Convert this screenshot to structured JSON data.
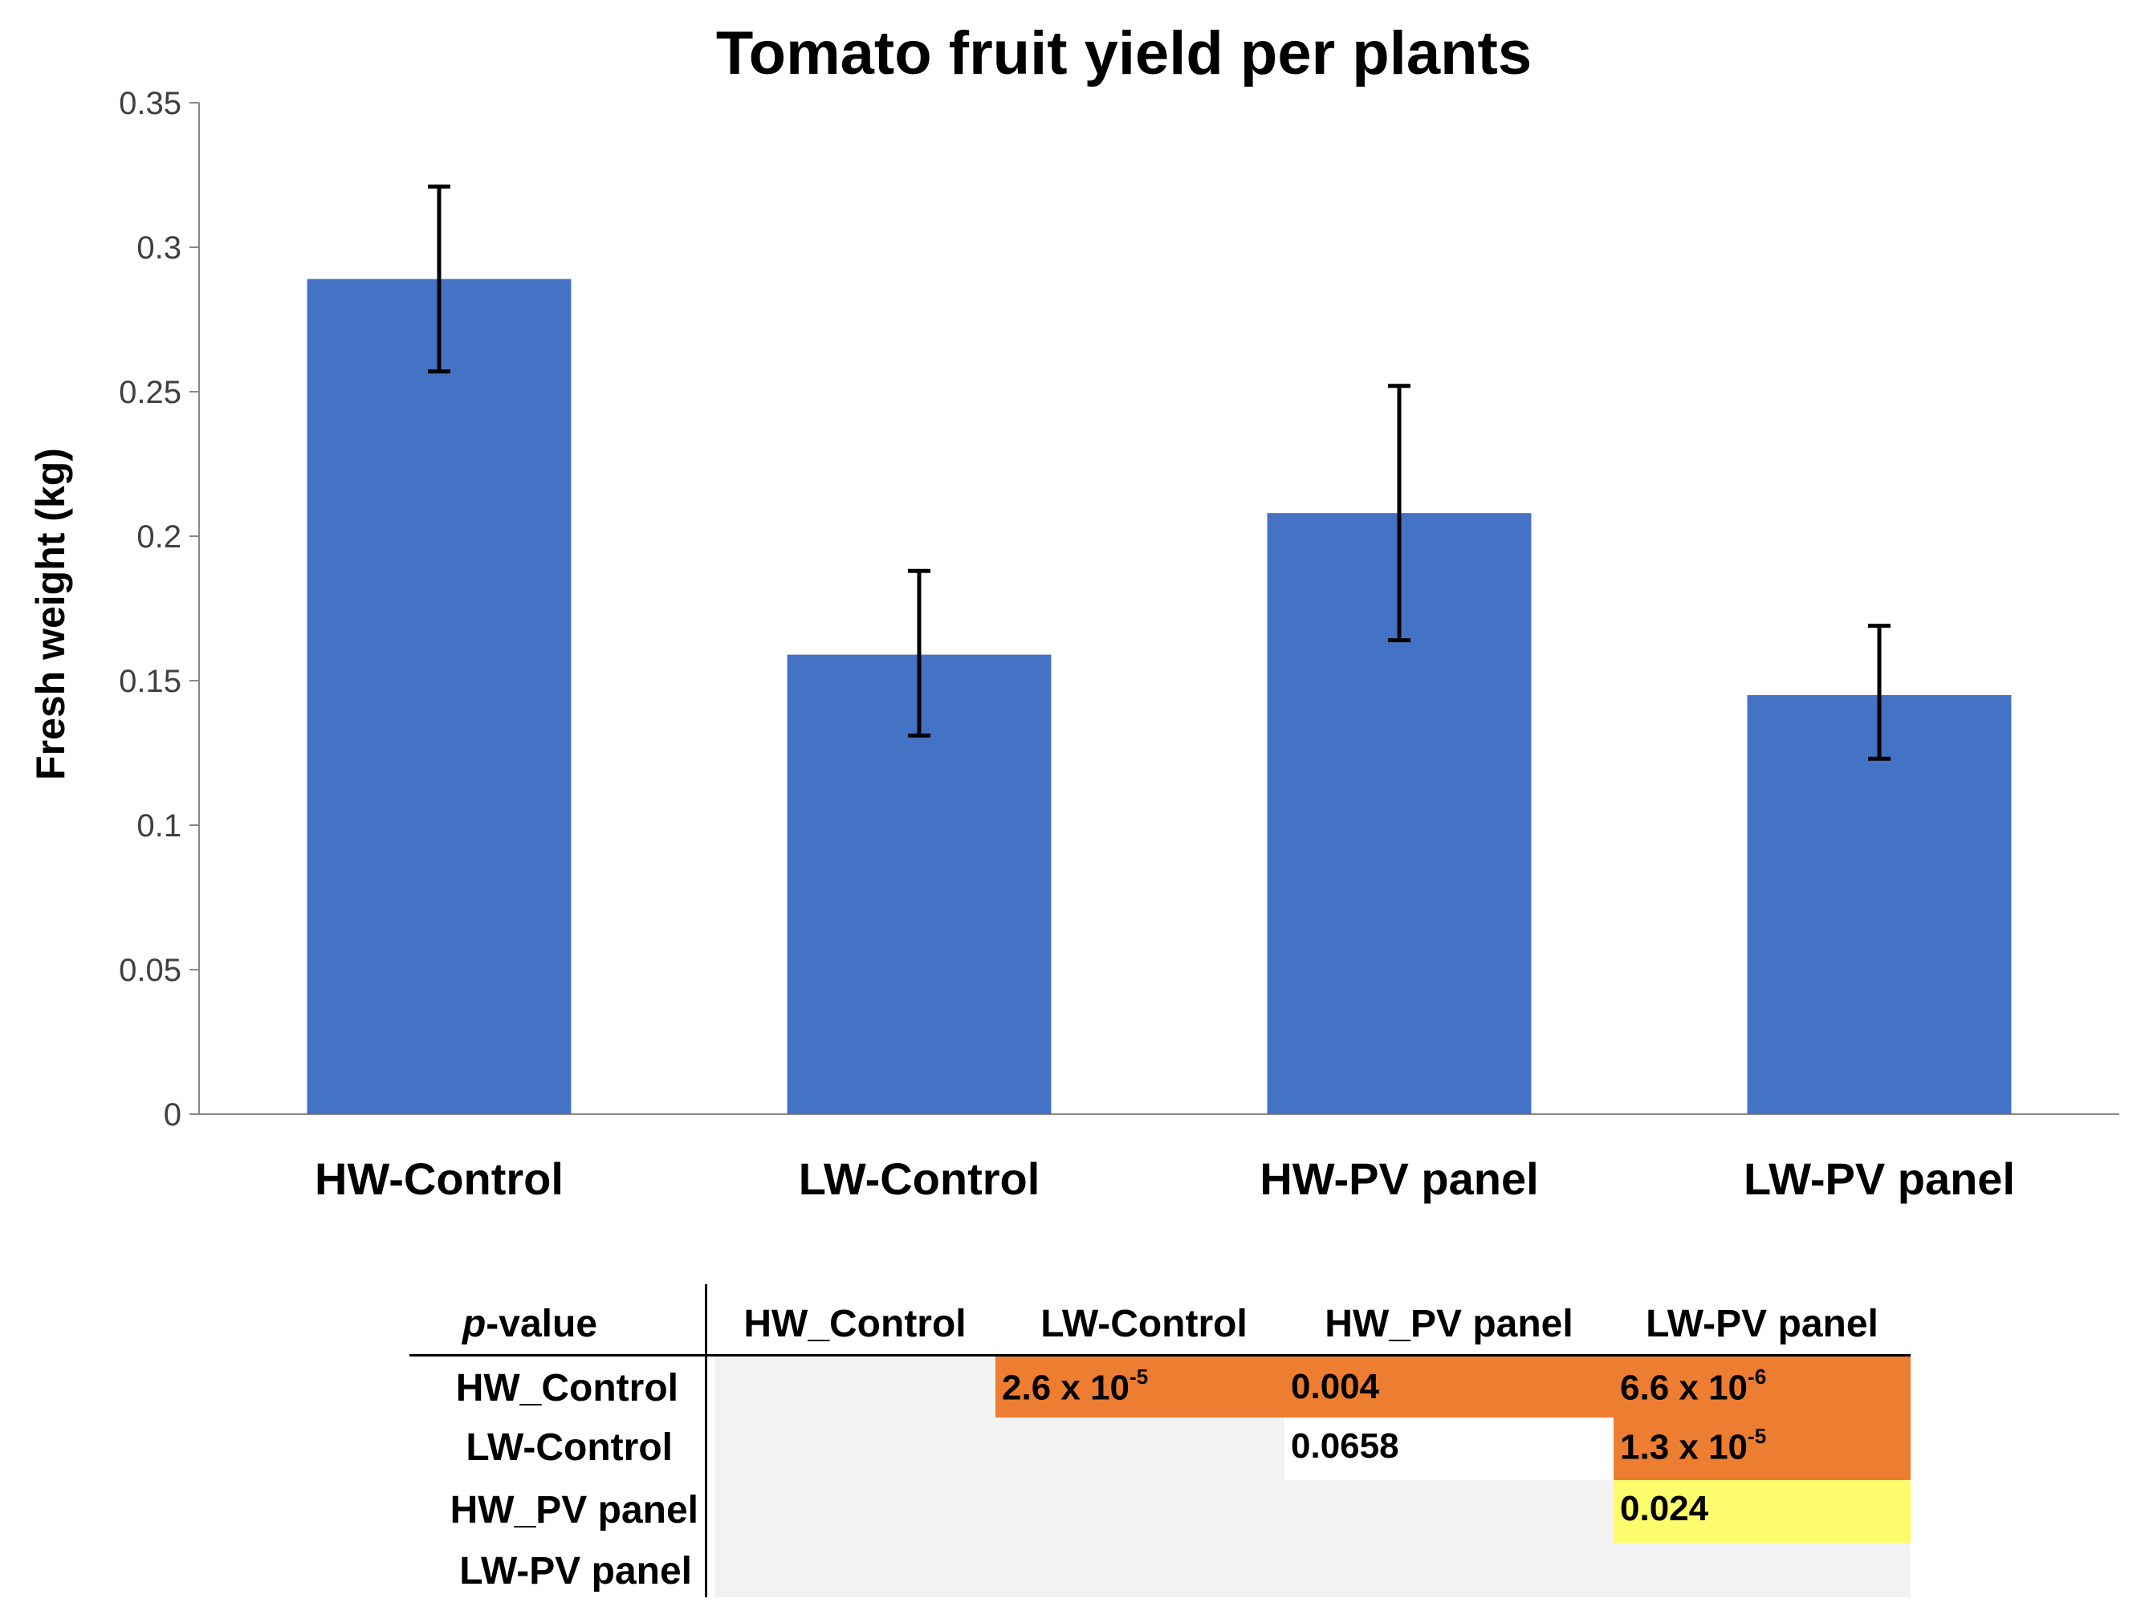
{
  "chart_data": {
    "type": "bar",
    "title": "Tomato fruit yield per plants",
    "xlabel": "",
    "ylabel": "Fresh weight (kg)",
    "ylim": [
      0,
      0.35
    ],
    "yticks": [
      "0",
      "0.05",
      "0.1",
      "0.15",
      "0.2",
      "0.25",
      "0.3",
      "0.35"
    ],
    "ytick_values": [
      0,
      0.05,
      0.1,
      0.15,
      0.2,
      0.25,
      0.3,
      0.35
    ],
    "categories": [
      "HW-Control",
      "LW-Control",
      "HW-PV panel",
      "LW-PV panel"
    ],
    "values": [
      0.289,
      0.159,
      0.208,
      0.145
    ],
    "error_low": [
      0.257,
      0.131,
      0.164,
      0.123
    ],
    "error_high": [
      0.321,
      0.188,
      0.252,
      0.169
    ],
    "bar_color": "#4472c4",
    "grid": false
  },
  "pvalue_table": {
    "corner_italic": "p",
    "corner_rest": "-value",
    "columns": [
      "HW_Control",
      "LW-Control",
      "HW_PV panel",
      "LW-PV panel"
    ],
    "rows": [
      "HW_Control",
      "LW-Control",
      "HW_PV panel",
      "LW-PV panel"
    ],
    "cells": {
      "r1c2_base": "2.6 x 10",
      "r1c2_exp": "-5",
      "r1c3": "0.004",
      "r1c4_base": "6.6 x 10",
      "r1c4_exp": "-6",
      "r2c3": "0.0658",
      "r2c4_base": "1.3 x 10",
      "r2c4_exp": "-5",
      "r3c4": "0.024"
    },
    "colors": {
      "significant": "#ed7d31",
      "marginal": "#fcfc6c",
      "empty": "#f2f2f2"
    }
  }
}
